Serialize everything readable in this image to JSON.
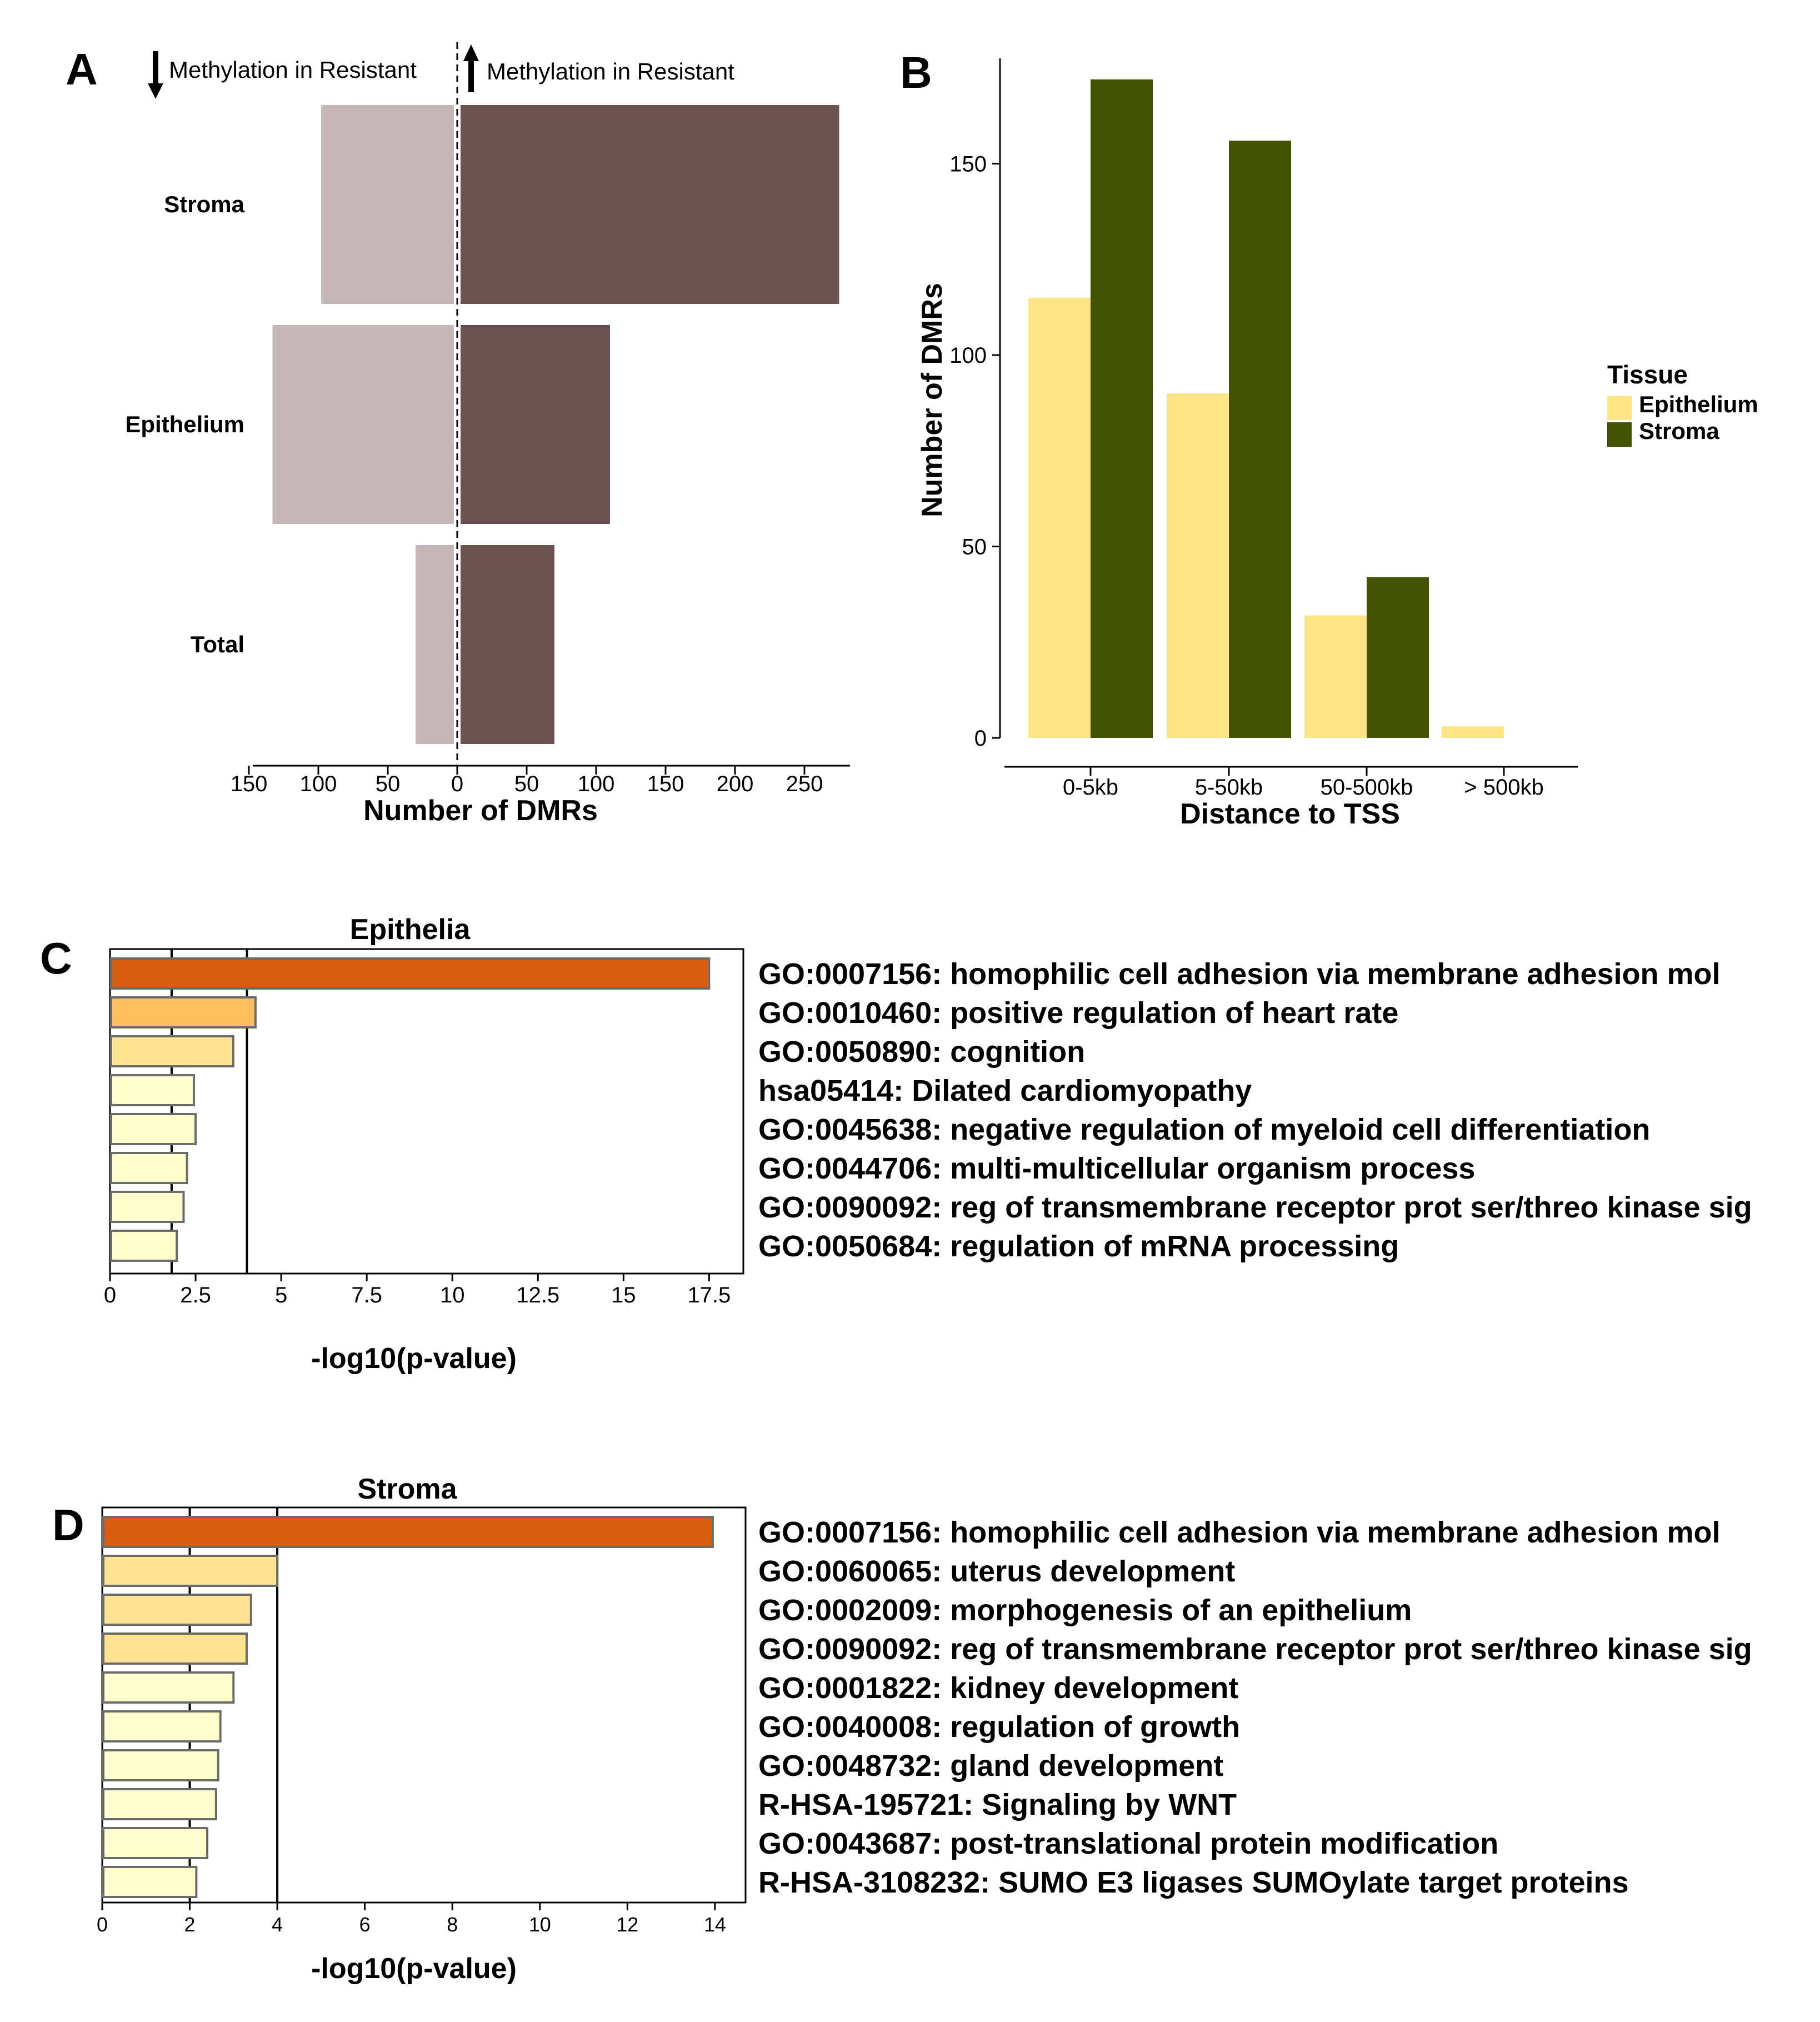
{
  "panels": {
    "a": "A",
    "b": "B",
    "c": "C",
    "d": "D"
  },
  "colors": {
    "down_bar": "#c6b7b6",
    "up_bar": "#6c5152",
    "epithelium": "#fde484",
    "stroma": "#415300",
    "bar_outline": "#6b6b6b"
  },
  "chart_data": [
    {
      "panel": "A",
      "type": "bar",
      "orientation": "horizontal-diverging",
      "header_left": "Methylation in  Resistant",
      "header_right": "Methylation in Resistant",
      "xlabel": "Number of DMRs",
      "xlim": [
        -150,
        280
      ],
      "xticks": [
        -150,
        -100,
        -50,
        0,
        50,
        100,
        150,
        200,
        250
      ],
      "xtick_labels": [
        "150",
        "100",
        "50",
        "0",
        "50",
        "100",
        "150",
        "200",
        "250"
      ],
      "categories": [
        "Stroma",
        "Epithelium",
        "Total"
      ],
      "series": [
        {
          "direction": "down",
          "values": [
            -98,
            -133,
            -30
          ]
        },
        {
          "direction": "up",
          "values": [
            275,
            110,
            70
          ]
        }
      ]
    },
    {
      "panel": "B",
      "type": "bar",
      "xlabel": "Distance to TSS",
      "ylabel": "Number of DMRs",
      "ylim": [
        0,
        172
      ],
      "yticks": [
        0,
        50,
        100,
        150
      ],
      "legend_title": "Tissue",
      "legend_position": "right",
      "categories": [
        "0-5kb",
        "5-50kb",
        "50-500kb",
        "> 500kb"
      ],
      "series": [
        {
          "name": "Epithelium",
          "values": [
            115,
            90,
            32,
            3
          ]
        },
        {
          "name": "Stroma",
          "values": [
            172,
            156,
            42,
            0
          ]
        }
      ]
    },
    {
      "panel": "C",
      "type": "bar",
      "orientation": "horizontal",
      "title": "Epithelia",
      "xlabel": "-log10(p-value)",
      "xlim": [
        0,
        18.5
      ],
      "xticks": [
        0,
        2.5,
        5,
        7.5,
        10,
        12.5,
        15,
        17.5
      ],
      "xtick_labels": [
        "0",
        "2.5",
        "5",
        "7.5",
        "10",
        "12.5",
        "15",
        "17.5"
      ],
      "reference_lines": [
        1.8,
        4.0
      ],
      "categories": [
        "GO:0007156: homophilic cell adhesion via membrane adhesion mol",
        "GO:0010460: positive regulation of heart rate",
        "GO:0050890: cognition",
        "hsa05414: Dilated cardiomyopathy",
        "GO:0045638: negative regulation of myeloid cell differentiation",
        "GO:0044706: multi-multicellular organism process",
        "GO:0090092: reg of transmembrane receptor prot ser/threo kinase sig",
        "GO:0050684: regulation of mRNA processing"
      ],
      "values": [
        17.5,
        4.25,
        3.6,
        2.45,
        2.5,
        2.25,
        2.15,
        1.95
      ],
      "fills": [
        "#d95f0e",
        "#febf5a",
        "#fee391",
        "#ffffcc",
        "#ffffcc",
        "#ffffcc",
        "#ffffcc",
        "#ffffcc"
      ]
    },
    {
      "panel": "D",
      "type": "bar",
      "orientation": "horizontal",
      "title": "Stroma",
      "xlabel": "-log10(p-value)",
      "xlim": [
        0,
        14.7
      ],
      "xticks": [
        0,
        2,
        4,
        6,
        8,
        10,
        12,
        14
      ],
      "xtick_labels": [
        "0",
        "2",
        "4",
        "6",
        "8",
        "10",
        "12",
        "14"
      ],
      "reference_lines": [
        2.0,
        4.0
      ],
      "categories": [
        "GO:0007156: homophilic cell adhesion via membrane adhesion mol",
        "GO:0060065: uterus development",
        "GO:0002009: morphogenesis of an epithelium",
        "GO:0090092: reg of transmembrane receptor prot ser/threo kinase sig",
        "GO:0001822: kidney development",
        "GO:0040008: regulation of growth",
        "GO:0048732: gland development",
        "R-HSA-195721: Signaling by WNT",
        "GO:0043687: post-translational protein modification",
        "R-HSA-3108232: SUMO E3 ligases SUMOylate target proteins"
      ],
      "values": [
        13.95,
        4.0,
        3.4,
        3.3,
        3.0,
        2.7,
        2.65,
        2.6,
        2.4,
        2.15
      ],
      "fills": [
        "#d95f0e",
        "#fee391",
        "#fee391",
        "#fee391",
        "#ffffcc",
        "#ffffcc",
        "#ffffcc",
        "#ffffcc",
        "#ffffcc",
        "#ffffcc"
      ]
    }
  ]
}
